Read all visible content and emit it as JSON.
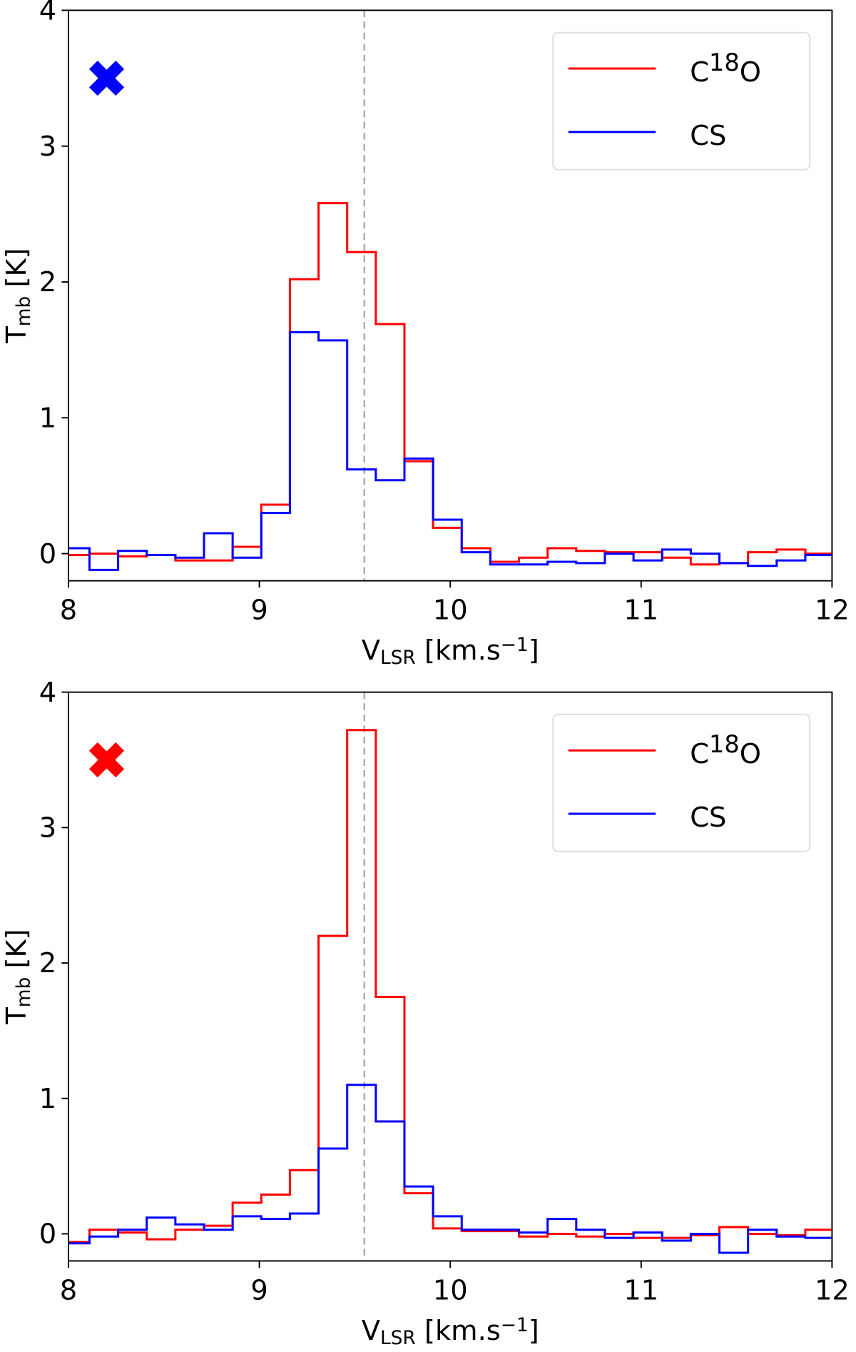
{
  "chart_data": [
    {
      "type": "step",
      "ylabel": [
        {
          "t": "T"
        },
        {
          "t": "mb",
          "sub": true
        },
        {
          "t": " [K]"
        }
      ],
      "xlabel": [
        {
          "t": "V"
        },
        {
          "t": "LSR",
          "sub": true
        },
        {
          "t": " [km.s"
        },
        {
          "t": "−1",
          "sup": true
        },
        {
          "t": "]"
        }
      ],
      "x": [
        8.035,
        8.185,
        8.335,
        8.485,
        8.635,
        8.785,
        8.935,
        9.085,
        9.235,
        9.385,
        9.535,
        9.685,
        9.835,
        9.985,
        10.135,
        10.285,
        10.435,
        10.585,
        10.735,
        10.885,
        11.035,
        11.185,
        11.335,
        11.485,
        11.635,
        11.785,
        11.935
      ],
      "series": [
        {
          "name": [
            {
              "t": "C"
            },
            {
              "t": "18",
              "sup": true
            },
            {
              "t": "O"
            }
          ],
          "color": "#ff0000",
          "values": [
            -0.01,
            0.0,
            -0.02,
            -0.01,
            -0.05,
            -0.05,
            0.05,
            0.36,
            2.02,
            2.58,
            2.22,
            1.69,
            0.68,
            0.19,
            0.04,
            -0.06,
            -0.03,
            0.04,
            0.02,
            0.01,
            0.01,
            -0.03,
            -0.08,
            -0.07,
            0.01,
            0.03,
            0.0
          ]
        },
        {
          "name": [
            {
              "t": "CS"
            }
          ],
          "color": "#0000ff",
          "values": [
            0.04,
            -0.12,
            0.02,
            -0.01,
            -0.03,
            0.15,
            -0.03,
            0.3,
            1.63,
            1.57,
            0.62,
            0.54,
            0.7,
            0.25,
            0.01,
            -0.08,
            -0.08,
            -0.06,
            -0.07,
            0.0,
            -0.05,
            0.03,
            0.0,
            -0.07,
            -0.09,
            -0.05,
            -0.01
          ]
        }
      ],
      "xlim": [
        8,
        12
      ],
      "ylim": [
        -0.2,
        4
      ],
      "xticks": [
        8,
        9,
        10,
        11,
        12
      ],
      "yticks": [
        0,
        1,
        2,
        3,
        4
      ],
      "vline": 9.55,
      "vline_color": "#aaaaaa",
      "marker": {
        "x": 8.2,
        "y": 3.5,
        "color": "#0000ff"
      },
      "legend": "upper right"
    },
    {
      "type": "step",
      "ylabel": [
        {
          "t": "T"
        },
        {
          "t": "mb",
          "sub": true
        },
        {
          "t": " [K]"
        }
      ],
      "xlabel": [
        {
          "t": "V"
        },
        {
          "t": "LSR",
          "sub": true
        },
        {
          "t": " [km.s"
        },
        {
          "t": "−1",
          "sup": true
        },
        {
          "t": "]"
        }
      ],
      "x": [
        8.035,
        8.185,
        8.335,
        8.485,
        8.635,
        8.785,
        8.935,
        9.085,
        9.235,
        9.385,
        9.535,
        9.685,
        9.835,
        9.985,
        10.135,
        10.285,
        10.435,
        10.585,
        10.735,
        10.885,
        11.035,
        11.185,
        11.335,
        11.485,
        11.635,
        11.785,
        11.935
      ],
      "series": [
        {
          "name": [
            {
              "t": "C"
            },
            {
              "t": "18",
              "sup": true
            },
            {
              "t": "O"
            }
          ],
          "color": "#ff0000",
          "values": [
            -0.06,
            0.03,
            0.01,
            -0.04,
            0.03,
            0.06,
            0.23,
            0.29,
            0.47,
            2.2,
            3.72,
            1.75,
            0.3,
            0.04,
            0.02,
            0.02,
            -0.02,
            0.0,
            -0.02,
            0.0,
            -0.03,
            -0.03,
            -0.01,
            0.05,
            0.0,
            -0.01,
            0.03
          ]
        },
        {
          "name": [
            {
              "t": "CS"
            }
          ],
          "color": "#0000ff",
          "values": [
            -0.07,
            -0.02,
            0.03,
            0.12,
            0.07,
            0.03,
            0.13,
            0.11,
            0.15,
            0.63,
            1.1,
            0.83,
            0.35,
            0.13,
            0.03,
            0.03,
            0.01,
            0.11,
            0.03,
            -0.03,
            0.01,
            -0.05,
            0.0,
            -0.14,
            0.03,
            -0.02,
            -0.03
          ]
        }
      ],
      "xlim": [
        8,
        12
      ],
      "ylim": [
        -0.2,
        4
      ],
      "xticks": [
        8,
        9,
        10,
        11,
        12
      ],
      "yticks": [
        0,
        1,
        2,
        3,
        4
      ],
      "vline": 9.55,
      "vline_color": "#aaaaaa",
      "marker": {
        "x": 8.2,
        "y": 3.5,
        "color": "#ff0000"
      },
      "legend": "upper right"
    }
  ]
}
